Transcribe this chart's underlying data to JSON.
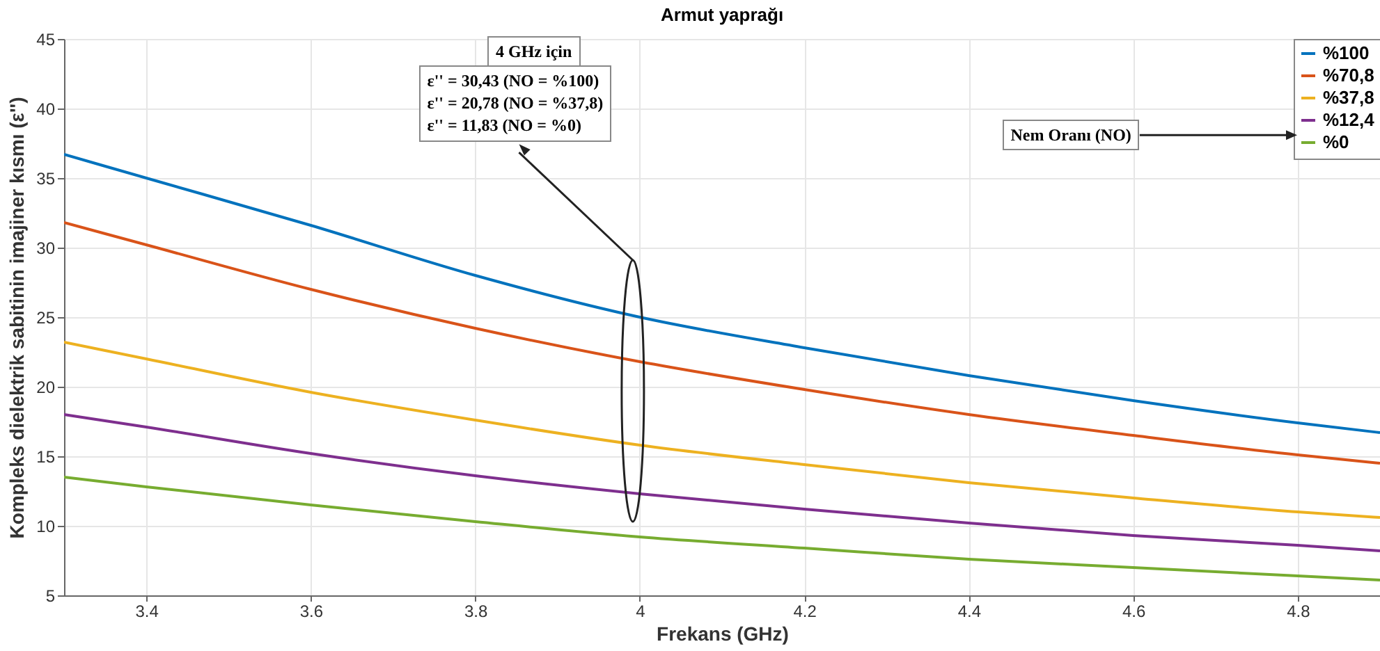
{
  "chart_data": {
    "type": "line",
    "title": "Armut yaprağı",
    "xlabel": "Frekans (GHz)",
    "ylabel": "Kompleks dielektrik sabitinin imajiner kısmı (ε'')",
    "x": [
      3.3,
      3.4,
      3.6,
      3.8,
      4.0,
      4.2,
      4.4,
      4.6,
      4.8,
      4.9
    ],
    "series": [
      {
        "name": "%100",
        "color": "#0072bd",
        "values": [
          36.7,
          35,
          31.6,
          28,
          25,
          22.8,
          20.8,
          19,
          17.4,
          16.7
        ]
      },
      {
        "name": "%70,8",
        "color": "#d95319",
        "values": [
          31.8,
          30.2,
          27,
          24.2,
          21.8,
          19.8,
          18,
          16.5,
          15.1,
          14.5
        ]
      },
      {
        "name": "%37,8",
        "color": "#edb120",
        "values": [
          23.2,
          22,
          19.6,
          17.6,
          15.8,
          14.4,
          13.1,
          12,
          11,
          10.6
        ]
      },
      {
        "name": "%12,4",
        "color": "#7e2f8e",
        "values": [
          18,
          17.1,
          15.2,
          13.6,
          12.3,
          11.2,
          10.2,
          9.3,
          8.6,
          8.2
        ]
      },
      {
        "name": "%0",
        "color": "#77ac30",
        "values": [
          13.5,
          12.8,
          11.5,
          10.3,
          9.2,
          8.4,
          7.6,
          7,
          6.4,
          6.1
        ]
      }
    ],
    "xlim": [
      3.3,
      4.9
    ],
    "xticks": [
      3.4,
      3.6,
      3.8,
      4,
      4.2,
      4.4,
      4.6,
      4.8
    ],
    "ylim": [
      5,
      45
    ],
    "yticks": [
      5,
      10,
      15,
      20,
      25,
      30,
      35,
      40,
      45
    ],
    "grid": true,
    "legend": "top right",
    "line_style": "solid",
    "marker": "none",
    "annotations": [
      "4 GHz için",
      "ε'' = 30,43 (NO = %100)\nε'' = 20,78 (NO = %37,8)\nε'' = 11,83 (NO = %0)",
      "Nem Oranı (NO)"
    ]
  }
}
